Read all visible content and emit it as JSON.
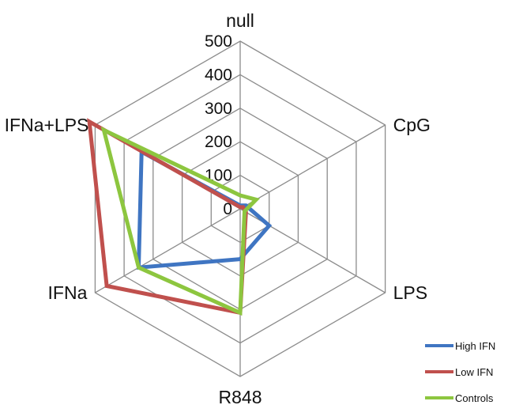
{
  "chart_data": {
    "type": "radar",
    "categories": [
      "null",
      "CpG",
      "LPS",
      "R848",
      "IFNa",
      "IFNa+LPS"
    ],
    "rlim": [
      0,
      500
    ],
    "ticks": [
      "0",
      "100",
      "200",
      "300",
      "400",
      "500"
    ],
    "tick_values": [
      0,
      100,
      200,
      300,
      400,
      500
    ],
    "grid": true,
    "legend_position": "bottom-right",
    "series": [
      {
        "name": "High IFN",
        "color": "#3F75C2",
        "values": [
          10,
          20,
          100,
          150,
          350,
          340
        ]
      },
      {
        "name": "Low IFN",
        "color": "#C0504D",
        "values": [
          5,
          10,
          20,
          310,
          460,
          520
        ]
      },
      {
        "name": "Controls",
        "color": "#8DC63F",
        "values": [
          40,
          55,
          15,
          310,
          350,
          470
        ]
      }
    ]
  }
}
